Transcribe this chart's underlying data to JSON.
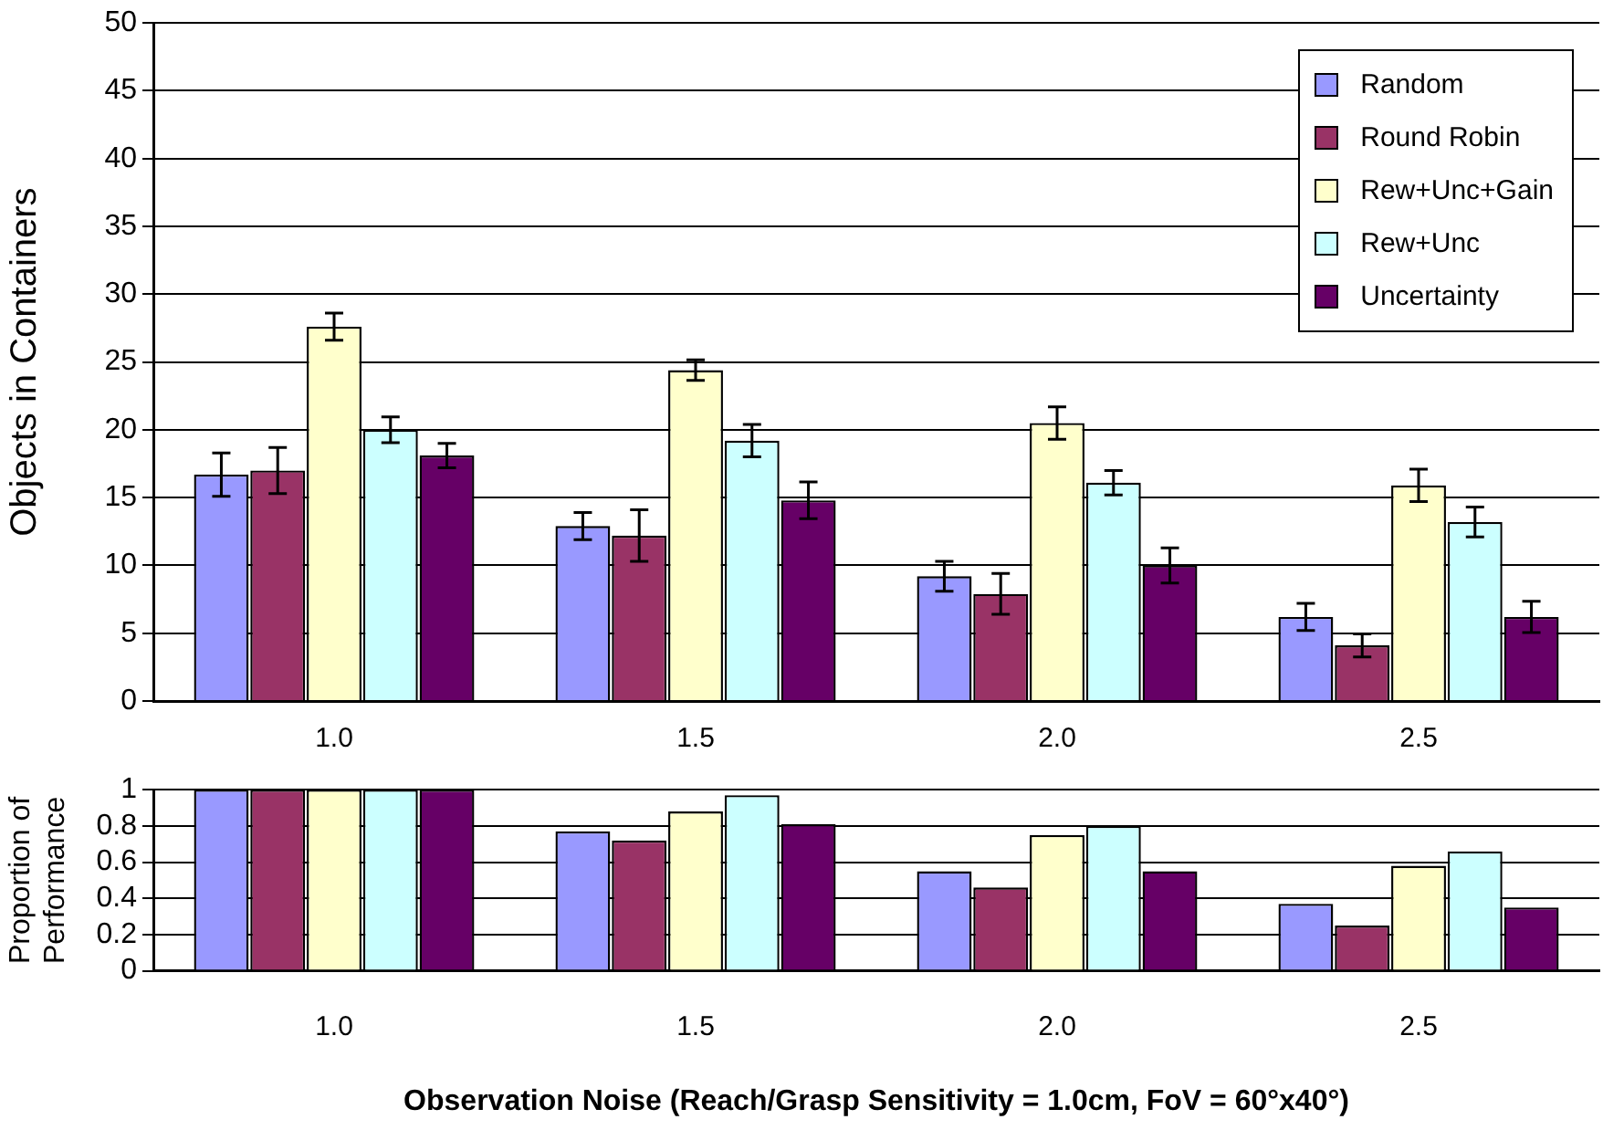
{
  "chart_data": [
    {
      "type": "bar",
      "ylabel": "Objects in Containers",
      "categories": [
        "1.0",
        "1.5",
        "2.0",
        "2.5"
      ],
      "ylim": [
        0,
        50
      ],
      "yticks": [
        0,
        5,
        10,
        15,
        20,
        25,
        30,
        35,
        40,
        45,
        50
      ],
      "grid": "y",
      "legend": "top right",
      "series": [
        {
          "name": "Random",
          "color": "#9999ff",
          "values": [
            16.7,
            12.9,
            9.2,
            6.2
          ],
          "errors": [
            1.6,
            1.0,
            1.1,
            1.0
          ]
        },
        {
          "name": "Round Robin",
          "color": "#993366",
          "values": [
            17.0,
            12.2,
            7.9,
            4.1
          ],
          "errors": [
            1.7,
            1.9,
            1.5,
            0.85
          ]
        },
        {
          "name": "Rew+Unc+Gain",
          "color": "#ffffcc",
          "values": [
            27.6,
            24.4,
            20.5,
            15.9
          ],
          "errors": [
            1.0,
            0.75,
            1.2,
            1.2
          ]
        },
        {
          "name": "Rew+Unc",
          "color": "#ccffff",
          "values": [
            20.0,
            19.2,
            16.1,
            13.2
          ],
          "errors": [
            0.95,
            1.2,
            0.9,
            1.1
          ]
        },
        {
          "name": "Uncertainty",
          "color": "#660066",
          "values": [
            18.1,
            14.8,
            10.0,
            6.2
          ],
          "errors": [
            0.9,
            1.35,
            1.3,
            1.15
          ]
        }
      ]
    },
    {
      "type": "bar",
      "ylabel": "Proportion of Performance",
      "xlabel": "Observation Noise (Reach/Grasp Sensitivity = 1.0cm, FoV = 60°x40°)",
      "categories": [
        "1.0",
        "1.5",
        "2.0",
        "2.5"
      ],
      "ylim": [
        0,
        1
      ],
      "yticks": [
        0,
        0.2,
        0.4,
        0.6,
        0.8,
        1
      ],
      "grid": "y",
      "series": [
        {
          "color": "#9999ff",
          "values": [
            1,
            0.77,
            0.55,
            0.37
          ]
        },
        {
          "color": "#993366",
          "values": [
            1,
            0.72,
            0.46,
            0.25
          ]
        },
        {
          "color": "#ffffcc",
          "values": [
            1,
            0.88,
            0.75,
            0.58
          ]
        },
        {
          "color": "#ccffff",
          "values": [
            1,
            0.97,
            0.8,
            0.66
          ]
        },
        {
          "color": "#660066",
          "values": [
            1,
            0.81,
            0.55,
            0.35
          ]
        }
      ]
    }
  ]
}
